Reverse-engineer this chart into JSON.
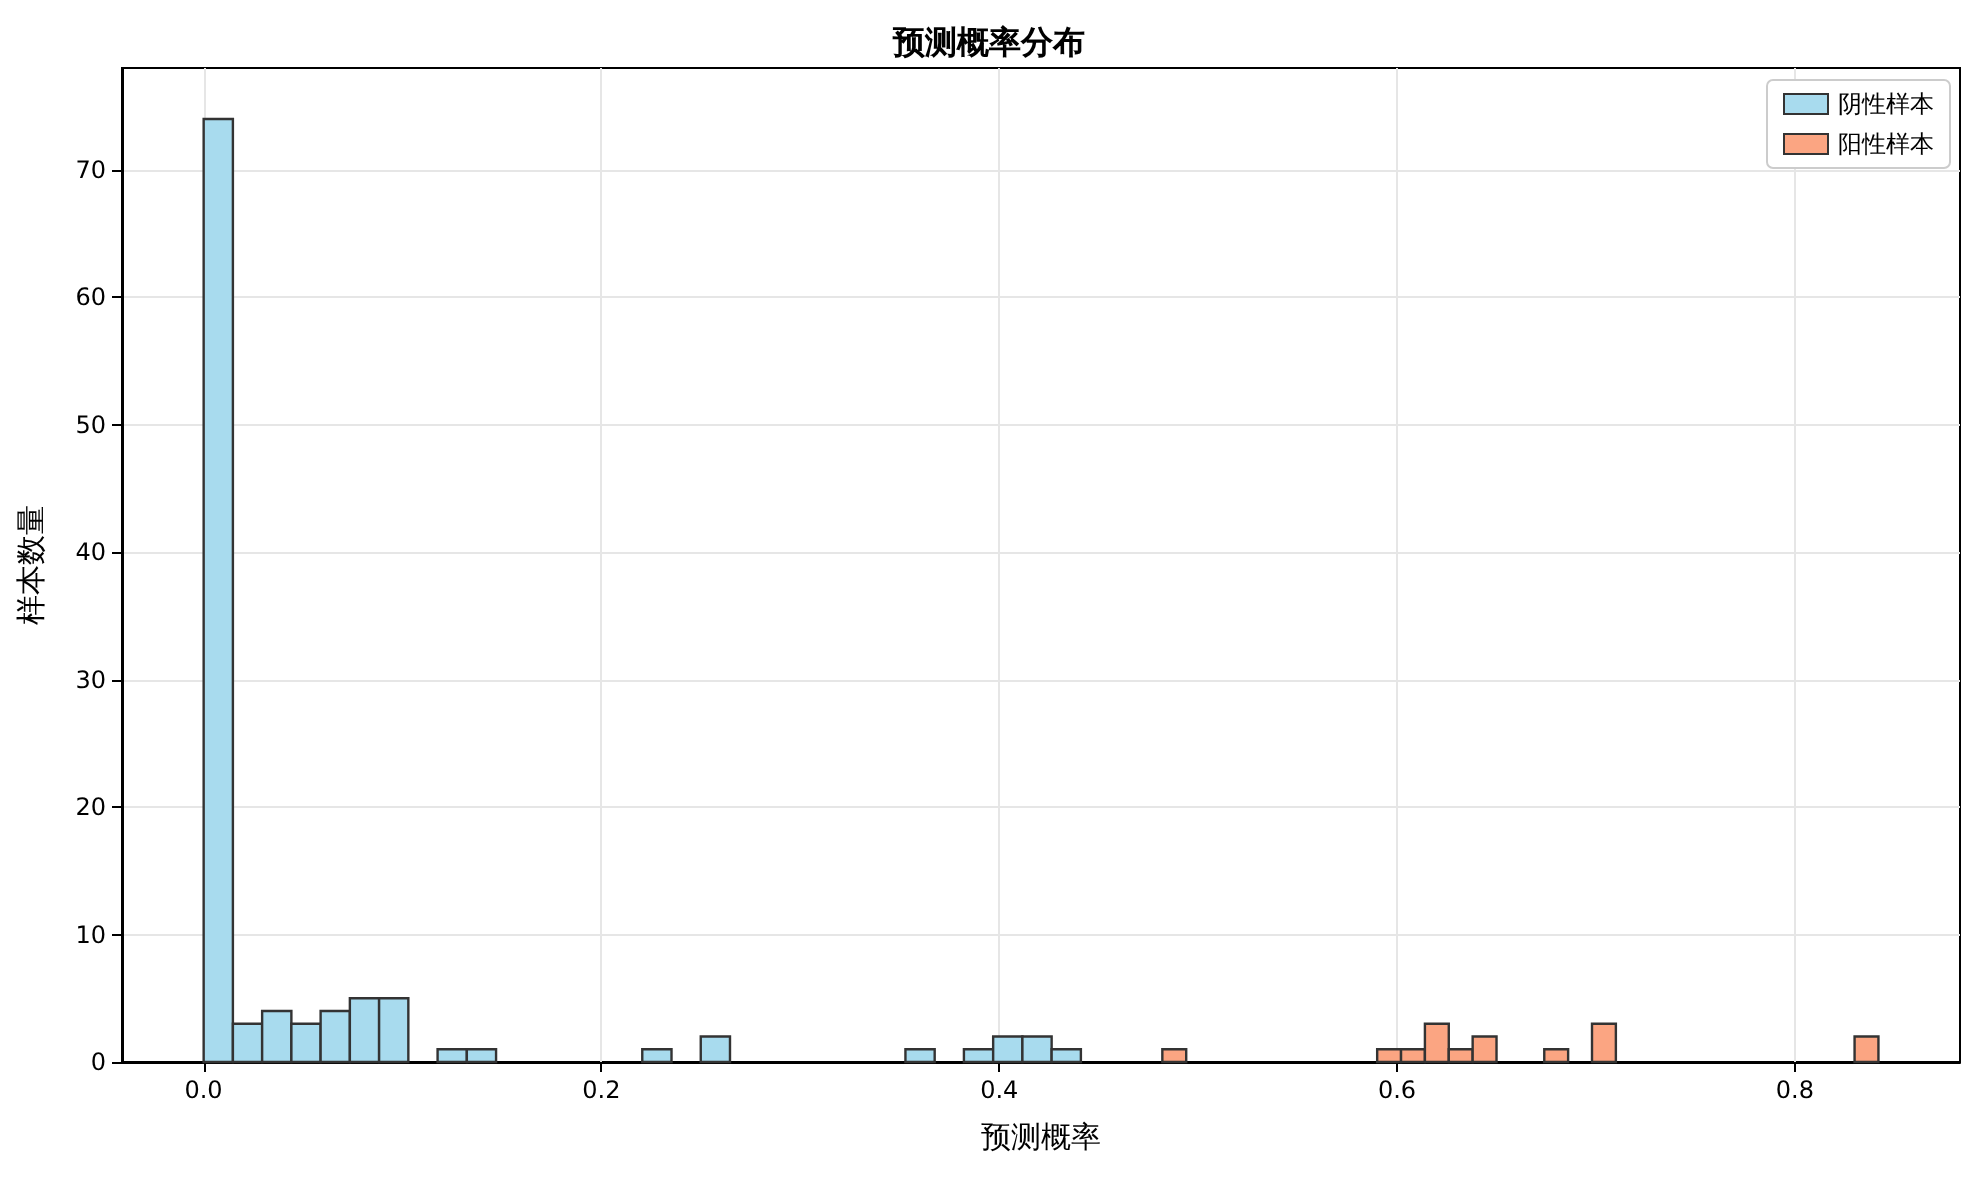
{
  "chart_data": {
    "type": "bar",
    "title": "预测概率分布",
    "xlabel": "预测概率",
    "ylabel": "样本数量",
    "xlim": [
      -0.041,
      0.883
    ],
    "ylim": [
      0,
      78
    ],
    "xticks": [
      {
        "value": 0,
        "label": "0.0"
      },
      {
        "value": 0.2,
        "label": "0.2"
      },
      {
        "value": 0.4,
        "label": "0.4"
      },
      {
        "value": 0.6,
        "label": "0.6"
      },
      {
        "value": 0.8,
        "label": "0.8"
      }
    ],
    "yticks": [
      0,
      10,
      20,
      30,
      40,
      50,
      60,
      70
    ],
    "grid": true,
    "legend": "top right",
    "series": [
      {
        "name": "阴性样本",
        "color": "#a8dbee",
        "x": [
          0.0074,
          0.0221,
          0.0368,
          0.0515,
          0.0662,
          0.0809,
          0.0956,
          0.125,
          0.1397,
          0.2279,
          0.2573,
          0.3602,
          0.3896,
          0.4043,
          0.419,
          0.4337
        ],
        "values": [
          74,
          3,
          4,
          3,
          4,
          5,
          5,
          1,
          1,
          1,
          2,
          1,
          1,
          2,
          2,
          1
        ]
      },
      {
        "name": "阳性样本",
        "color": "#fba582",
        "x": [
          0.488,
          0.596,
          0.608,
          0.62,
          0.632,
          0.644,
          0.68,
          0.704,
          0.836
        ],
        "values": [
          1,
          1,
          1,
          3,
          1,
          2,
          1,
          3,
          2
        ]
      }
    ]
  }
}
